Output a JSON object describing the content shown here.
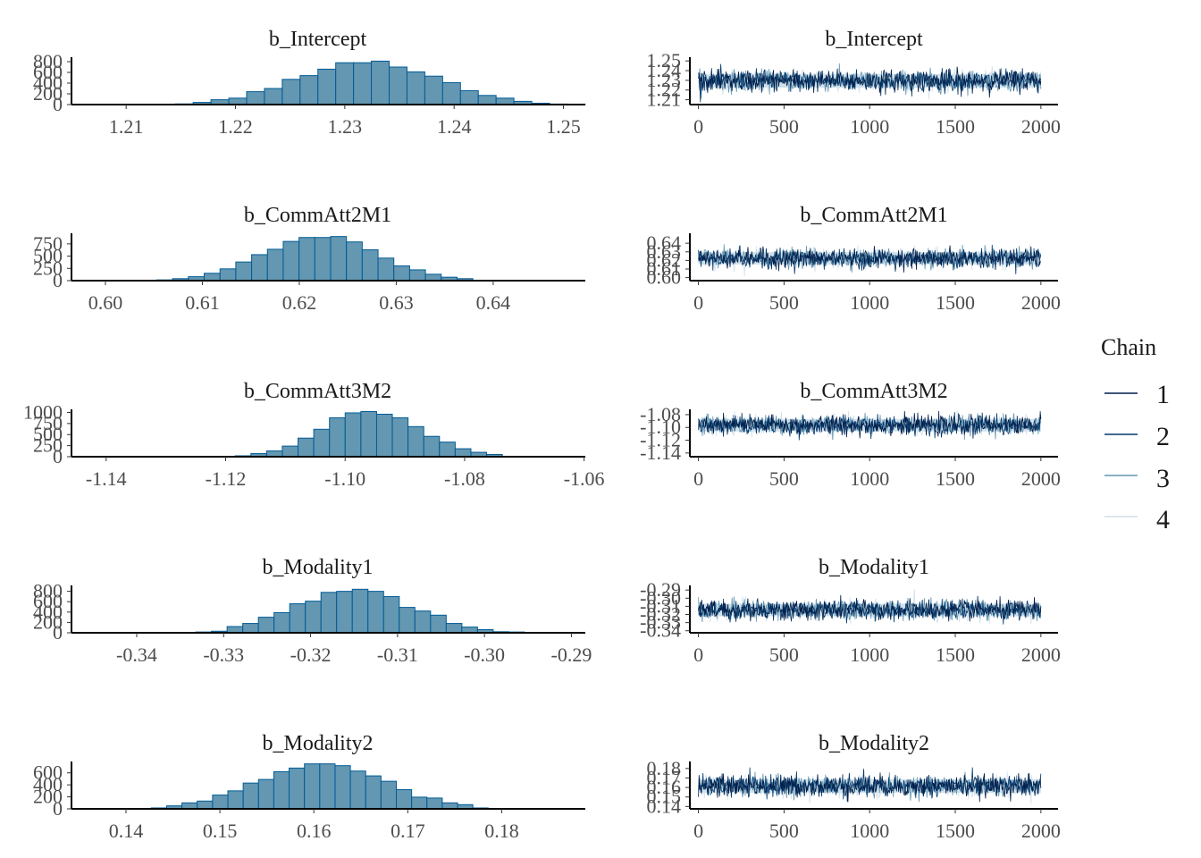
{
  "legend": {
    "title": "Chain",
    "entries": [
      {
        "label": "1",
        "color": "#011f4b"
      },
      {
        "label": "2",
        "color": "#03396c"
      },
      {
        "label": "3",
        "color": "#6497b1"
      },
      {
        "label": "4",
        "color": "#d1e1ec"
      }
    ]
  },
  "colors": {
    "hist_fill": "#6497b1",
    "hist_stroke": "#005b96",
    "axis": "#000000",
    "trace_band": "#d1e1ec"
  },
  "chart_data": [
    {
      "type": "bar",
      "panel": "histogram",
      "title": "b_Intercept",
      "xlim": [
        1.205,
        1.252
      ],
      "xticks": [
        "1.21",
        "1.22",
        "1.23",
        "1.24",
        "1.25"
      ],
      "xtick_values": [
        1.21,
        1.22,
        1.23,
        1.24,
        1.25
      ],
      "ylim": [
        0,
        850
      ],
      "yticks": [
        "0",
        "200",
        "400",
        "600",
        "800"
      ],
      "ytick_values": [
        0,
        200,
        400,
        600,
        800
      ],
      "bin_start": 1.2145,
      "bin_width": 0.00163,
      "values": [
        12,
        40,
        90,
        120,
        240,
        300,
        470,
        540,
        660,
        780,
        780,
        810,
        700,
        610,
        530,
        410,
        260,
        170,
        120,
        60,
        25,
        10,
        5
      ]
    },
    {
      "type": "line",
      "panel": "trace",
      "title": "b_Intercept",
      "xlim": [
        -50,
        2100
      ],
      "xticks": [
        "0",
        "500",
        "1000",
        "1500",
        "2000"
      ],
      "xtick_values": [
        0,
        500,
        1000,
        1500,
        2000
      ],
      "ylim": [
        1.205,
        1.252
      ],
      "yticks": [
        "1.21",
        "1.22",
        "1.23",
        "1.24",
        "1.25"
      ],
      "ytick_values": [
        1.21,
        1.22,
        1.23,
        1.24,
        1.25
      ],
      "mean": 1.2295,
      "sd": 0.0055,
      "series": [
        "1",
        "2",
        "3",
        "4"
      ],
      "iterations": 2000
    },
    {
      "type": "bar",
      "panel": "histogram",
      "title": "b_CommAtt2M1",
      "xlim": [
        0.5965,
        0.6495
      ],
      "xticks": [
        "0.60",
        "0.61",
        "0.62",
        "0.63",
        "0.64"
      ],
      "xtick_values": [
        0.6,
        0.61,
        0.62,
        0.63,
        0.64
      ],
      "ylim": [
        0,
        930
      ],
      "yticks": [
        "0",
        "250",
        "500",
        "750"
      ],
      "ytick_values": [
        0,
        250,
        500,
        750
      ],
      "bin_start": 0.6053,
      "bin_width": 0.00163,
      "values": [
        15,
        40,
        80,
        150,
        240,
        380,
        530,
        640,
        800,
        880,
        880,
        900,
        790,
        630,
        460,
        300,
        220,
        130,
        70,
        40
      ]
    },
    {
      "type": "line",
      "panel": "trace",
      "title": "b_CommAtt2M1",
      "xlim": [
        -50,
        2100
      ],
      "xticks": [
        "0",
        "500",
        "1000",
        "1500",
        "2000"
      ],
      "xtick_values": [
        0,
        500,
        1000,
        1500,
        2000
      ],
      "ylim": [
        0.5965,
        0.6495
      ],
      "yticks": [
        "0.60",
        "0.61",
        "0.62",
        "0.63",
        "0.64"
      ],
      "ytick_values": [
        0.6,
        0.61,
        0.62,
        0.63,
        0.64
      ],
      "mean": 0.6225,
      "sd": 0.0055,
      "series": [
        "1",
        "2",
        "3",
        "4"
      ],
      "iterations": 2000
    },
    {
      "type": "bar",
      "panel": "histogram",
      "title": "b_CommAtt3M2",
      "xlim": [
        -1.1458,
        -1.0598
      ],
      "xticks": [
        "-1.14",
        "-1.12",
        "-1.10",
        "-1.08",
        "-1.06"
      ],
      "xtick_values": [
        -1.14,
        -1.12,
        -1.1,
        -1.08,
        -1.06
      ],
      "ylim": [
        0,
        1030
      ],
      "yticks": [
        "0",
        "250",
        "500",
        "750",
        "1000"
      ],
      "ytick_values": [
        0,
        250,
        500,
        750,
        1000
      ],
      "bin_start": -1.1184,
      "bin_width": 0.00263,
      "values": [
        20,
        70,
        130,
        240,
        420,
        620,
        880,
        990,
        1020,
        960,
        880,
        680,
        460,
        330,
        180,
        100,
        50
      ]
    },
    {
      "type": "line",
      "panel": "trace",
      "title": "b_CommAtt3M2",
      "xlim": [
        -50,
        2100
      ],
      "xticks": [
        "0",
        "500",
        "1000",
        "1500",
        "2000"
      ],
      "xtick_values": [
        0,
        500,
        1000,
        1500,
        2000
      ],
      "ylim": [
        -1.1458,
        -1.0745
      ],
      "yticks": [
        "-1.14",
        "-1.12",
        "-1.10",
        "-1.08"
      ],
      "ytick_values": [
        -1.14,
        -1.12,
        -1.1,
        -1.08
      ],
      "mean": -1.0965,
      "sd": 0.0075,
      "series": [
        "1",
        "2",
        "3",
        "4"
      ],
      "iterations": 2000
    },
    {
      "type": "bar",
      "panel": "histogram",
      "title": "b_Modality1",
      "xlim": [
        -0.3475,
        -0.2884
      ],
      "xticks": [
        "-0.34",
        "-0.33",
        "-0.32",
        "-0.31",
        "-0.30",
        "-0.29"
      ],
      "xtick_values": [
        -0.34,
        -0.33,
        -0.32,
        -0.31,
        -0.3,
        -0.29
      ],
      "ylim": [
        0,
        880
      ],
      "yticks": [
        "0",
        "200",
        "400",
        "600",
        "800"
      ],
      "ytick_values": [
        0,
        200,
        400,
        600,
        800
      ],
      "bin_start": -0.3332,
      "bin_width": 0.0018,
      "values": [
        15,
        30,
        120,
        180,
        300,
        390,
        560,
        610,
        780,
        800,
        840,
        800,
        700,
        490,
        420,
        340,
        180,
        110,
        60,
        20,
        15
      ]
    },
    {
      "type": "line",
      "panel": "trace",
      "title": "b_Modality1",
      "xlim": [
        -50,
        2100
      ],
      "xticks": [
        "0",
        "500",
        "1000",
        "1500",
        "2000"
      ],
      "xtick_values": [
        0,
        500,
        1000,
        1500,
        2000
      ],
      "ylim": [
        -0.3425,
        -0.2865
      ],
      "yticks": [
        "-0.34",
        "-0.33",
        "-0.32",
        "-0.31",
        "-0.30",
        "-0.29"
      ],
      "ytick_values": [
        -0.34,
        -0.33,
        -0.32,
        -0.31,
        -0.3,
        -0.29
      ],
      "mean": -0.3145,
      "sd": 0.006,
      "series": [
        "1",
        "2",
        "3",
        "4"
      ],
      "iterations": 2000
    },
    {
      "type": "bar",
      "panel": "histogram",
      "title": "b_Modality2",
      "xlim": [
        0.1342,
        0.1889
      ],
      "xticks": [
        "0.14",
        "0.15",
        "0.16",
        "0.17",
        "0.18"
      ],
      "xtick_values": [
        0.14,
        0.15,
        0.16,
        0.17,
        0.18
      ],
      "ylim": [
        0,
        760
      ],
      "yticks": [
        "0",
        "200",
        "400",
        "600"
      ],
      "ytick_values": [
        0,
        200,
        400,
        600
      ],
      "bin_start": 0.1427,
      "bin_width": 0.00163,
      "values": [
        15,
        50,
        100,
        130,
        230,
        300,
        430,
        490,
        620,
        680,
        750,
        750,
        720,
        630,
        550,
        460,
        320,
        195,
        180,
        100,
        70,
        15
      ]
    },
    {
      "type": "line",
      "panel": "trace",
      "title": "b_Modality2",
      "xlim": [
        -50,
        2100
      ],
      "xticks": [
        "0",
        "500",
        "1000",
        "1500",
        "2000"
      ],
      "xtick_values": [
        0,
        500,
        1000,
        1500,
        2000
      ],
      "ylim": [
        0.1375,
        0.1855
      ],
      "yticks": [
        "0.14",
        "0.15",
        "0.16",
        "0.17",
        "0.18"
      ],
      "ytick_values": [
        0.14,
        0.15,
        0.16,
        0.17,
        0.18
      ],
      "mean": 0.1615,
      "sd": 0.0055,
      "series": [
        "1",
        "2",
        "3",
        "4"
      ],
      "iterations": 2000
    }
  ]
}
